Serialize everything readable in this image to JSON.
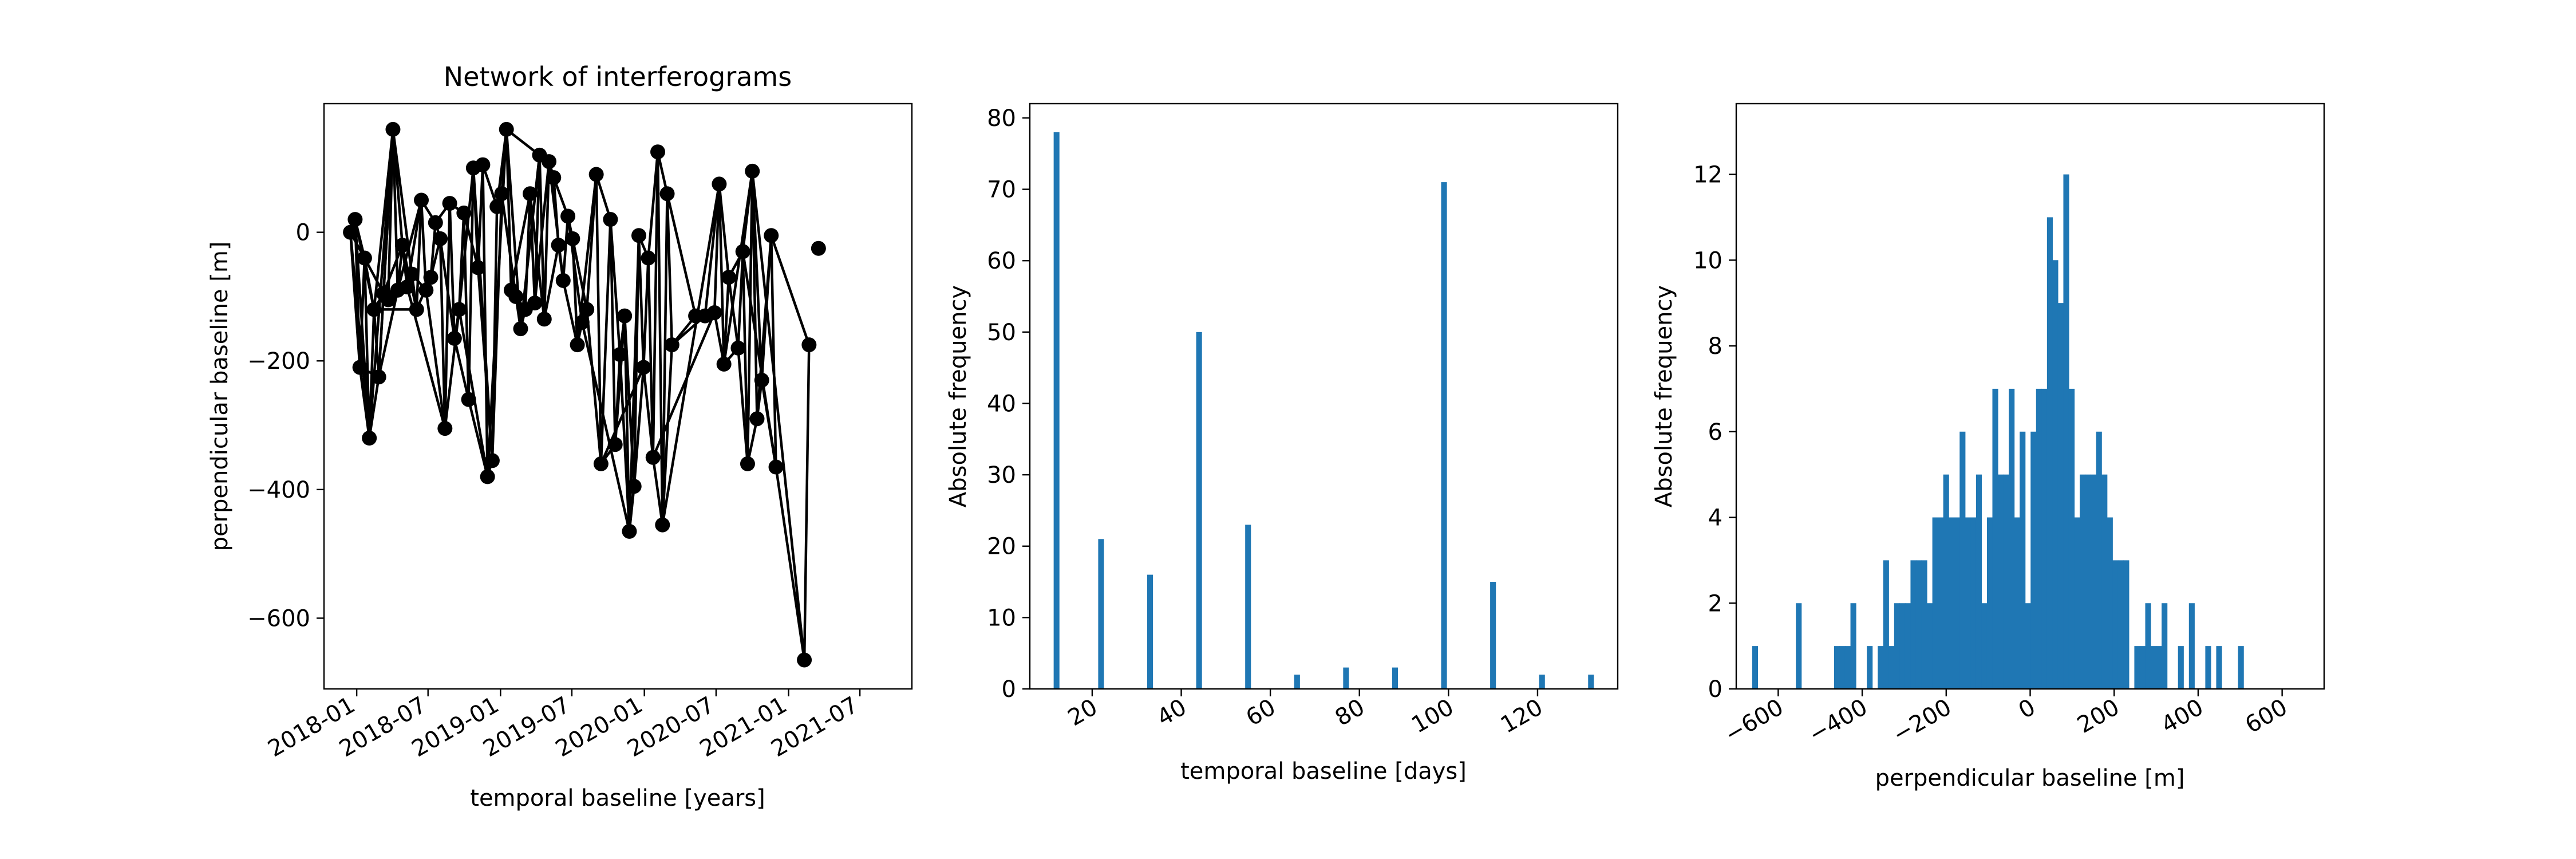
{
  "chart_data": [
    {
      "type": "line",
      "title": "Network of interferograms",
      "xlabel": "temporal baseline [years]",
      "ylabel": "perpendicular baseline [m]",
      "xlim": [
        "2017-10-10",
        "2021-11-10"
      ],
      "ylim": [
        -710,
        200
      ],
      "x_ticks": [
        "2018-01",
        "2018-07",
        "2019-01",
        "2019-07",
        "2020-01",
        "2020-07",
        "2021-01",
        "2021-07"
      ],
      "y_ticks": [
        0,
        -200,
        -400,
        -600
      ],
      "marker_color": "#000000",
      "acquisitions": [
        {
          "date": "2017-12-16",
          "bperp": 0
        },
        {
          "date": "2017-12-28",
          "bperp": 20
        },
        {
          "date": "2018-01-09",
          "bperp": -210
        },
        {
          "date": "2018-01-21",
          "bperp": -40
        },
        {
          "date": "2018-02-02",
          "bperp": -320
        },
        {
          "date": "2018-02-14",
          "bperp": -120
        },
        {
          "date": "2018-02-26",
          "bperp": -225
        },
        {
          "date": "2018-03-10",
          "bperp": -95
        },
        {
          "date": "2018-03-22",
          "bperp": -105
        },
        {
          "date": "2018-04-03",
          "bperp": 160
        },
        {
          "date": "2018-04-15",
          "bperp": -90
        },
        {
          "date": "2018-04-27",
          "bperp": -20
        },
        {
          "date": "2018-05-09",
          "bperp": -85
        },
        {
          "date": "2018-05-21",
          "bperp": -65
        },
        {
          "date": "2018-06-02",
          "bperp": -120
        },
        {
          "date": "2018-06-14",
          "bperp": 50
        },
        {
          "date": "2018-06-26",
          "bperp": -90
        },
        {
          "date": "2018-07-08",
          "bperp": -70
        },
        {
          "date": "2018-07-20",
          "bperp": 15
        },
        {
          "date": "2018-08-01",
          "bperp": -10
        },
        {
          "date": "2018-08-13",
          "bperp": -305
        },
        {
          "date": "2018-08-25",
          "bperp": 45
        },
        {
          "date": "2018-09-06",
          "bperp": -165
        },
        {
          "date": "2018-09-18",
          "bperp": -120
        },
        {
          "date": "2018-09-30",
          "bperp": 30
        },
        {
          "date": "2018-10-12",
          "bperp": -260
        },
        {
          "date": "2018-10-24",
          "bperp": 100
        },
        {
          "date": "2018-11-05",
          "bperp": -55
        },
        {
          "date": "2018-11-17",
          "bperp": 105
        },
        {
          "date": "2018-11-29",
          "bperp": -380
        },
        {
          "date": "2018-12-11",
          "bperp": -355
        },
        {
          "date": "2018-12-23",
          "bperp": 40
        },
        {
          "date": "2019-01-04",
          "bperp": 60
        },
        {
          "date": "2019-01-16",
          "bperp": 160
        },
        {
          "date": "2019-01-28",
          "bperp": -90
        },
        {
          "date": "2019-02-09",
          "bperp": -100
        },
        {
          "date": "2019-02-21",
          "bperp": -150
        },
        {
          "date": "2019-03-05",
          "bperp": -120
        },
        {
          "date": "2019-03-17",
          "bperp": 60
        },
        {
          "date": "2019-03-29",
          "bperp": -110
        },
        {
          "date": "2019-04-10",
          "bperp": 120
        },
        {
          "date": "2019-04-22",
          "bperp": -135
        },
        {
          "date": "2019-05-04",
          "bperp": 110
        },
        {
          "date": "2019-05-16",
          "bperp": 85
        },
        {
          "date": "2019-05-28",
          "bperp": -20
        },
        {
          "date": "2019-06-09",
          "bperp": -75
        },
        {
          "date": "2019-06-21",
          "bperp": 25
        },
        {
          "date": "2019-07-03",
          "bperp": -10
        },
        {
          "date": "2019-07-15",
          "bperp": -175
        },
        {
          "date": "2019-07-27",
          "bperp": -140
        },
        {
          "date": "2019-08-08",
          "bperp": -120
        },
        {
          "date": "2019-09-01",
          "bperp": 90
        },
        {
          "date": "2019-09-13",
          "bperp": -360
        },
        {
          "date": "2019-10-07",
          "bperp": 20
        },
        {
          "date": "2019-10-19",
          "bperp": -330
        },
        {
          "date": "2019-10-31",
          "bperp": -190
        },
        {
          "date": "2019-11-12",
          "bperp": -130
        },
        {
          "date": "2019-11-24",
          "bperp": -465
        },
        {
          "date": "2019-12-06",
          "bperp": -395
        },
        {
          "date": "2019-12-18",
          "bperp": -5
        },
        {
          "date": "2019-12-30",
          "bperp": -210
        },
        {
          "date": "2020-01-11",
          "bperp": -40
        },
        {
          "date": "2020-01-23",
          "bperp": -350
        },
        {
          "date": "2020-02-04",
          "bperp": 125
        },
        {
          "date": "2020-02-16",
          "bperp": -455
        },
        {
          "date": "2020-02-28",
          "bperp": 60
        },
        {
          "date": "2020-03-11",
          "bperp": -175
        },
        {
          "date": "2020-05-10",
          "bperp": -130
        },
        {
          "date": "2020-06-03",
          "bperp": -130
        },
        {
          "date": "2020-06-27",
          "bperp": -125
        },
        {
          "date": "2020-07-09",
          "bperp": 75
        },
        {
          "date": "2020-07-21",
          "bperp": -205
        },
        {
          "date": "2020-08-02",
          "bperp": -70
        },
        {
          "date": "2020-08-26",
          "bperp": -180
        },
        {
          "date": "2020-09-07",
          "bperp": -30
        },
        {
          "date": "2020-09-19",
          "bperp": -360
        },
        {
          "date": "2020-10-01",
          "bperp": 95
        },
        {
          "date": "2020-10-13",
          "bperp": -290
        },
        {
          "date": "2020-10-25",
          "bperp": -230
        },
        {
          "date": "2020-11-18",
          "bperp": -5
        },
        {
          "date": "2020-11-30",
          "bperp": -365
        },
        {
          "date": "2021-02-10",
          "bperp": -665
        },
        {
          "date": "2021-02-22",
          "bperp": -175
        },
        {
          "date": "2021-03-18",
          "bperp": -25
        }
      ],
      "interferograms": [
        [
          0,
          1
        ],
        [
          0,
          2
        ],
        [
          0,
          3
        ],
        [
          0,
          4
        ],
        [
          1,
          2
        ],
        [
          1,
          3
        ],
        [
          1,
          4
        ],
        [
          1,
          5
        ],
        [
          2,
          3
        ],
        [
          2,
          4
        ],
        [
          2,
          6
        ],
        [
          3,
          4
        ],
        [
          3,
          5
        ],
        [
          3,
          7
        ],
        [
          4,
          5
        ],
        [
          4,
          6
        ],
        [
          4,
          9
        ],
        [
          5,
          6
        ],
        [
          5,
          7
        ],
        [
          5,
          9
        ],
        [
          6,
          7
        ],
        [
          6,
          9
        ],
        [
          6,
          10
        ],
        [
          7,
          8
        ],
        [
          7,
          9
        ],
        [
          7,
          11
        ],
        [
          8,
          9
        ],
        [
          8,
          10
        ],
        [
          8,
          12
        ],
        [
          9,
          10
        ],
        [
          9,
          11
        ],
        [
          9,
          13
        ],
        [
          10,
          11
        ],
        [
          10,
          13
        ],
        [
          10,
          15
        ],
        [
          11,
          12
        ],
        [
          11,
          14
        ],
        [
          12,
          13
        ],
        [
          12,
          15
        ],
        [
          13,
          14
        ],
        [
          13,
          16
        ],
        [
          14,
          15
        ],
        [
          14,
          17
        ],
        [
          15,
          16
        ],
        [
          15,
          18
        ],
        [
          16,
          17
        ],
        [
          16,
          20
        ],
        [
          17,
          18
        ],
        [
          17,
          19
        ],
        [
          18,
          19
        ],
        [
          18,
          21
        ],
        [
          19,
          20
        ],
        [
          19,
          22
        ],
        [
          20,
          21
        ],
        [
          20,
          23
        ],
        [
          21,
          22
        ],
        [
          21,
          24
        ],
        [
          22,
          23
        ],
        [
          22,
          25
        ],
        [
          23,
          24
        ],
        [
          23,
          26
        ],
        [
          24,
          25
        ],
        [
          24,
          27
        ],
        [
          25,
          26
        ],
        [
          25,
          29
        ],
        [
          26,
          27
        ],
        [
          26,
          28
        ],
        [
          27,
          28
        ],
        [
          27,
          30
        ],
        [
          28,
          29
        ],
        [
          28,
          31
        ],
        [
          29,
          30
        ],
        [
          29,
          33
        ],
        [
          30,
          31
        ],
        [
          30,
          32
        ],
        [
          31,
          32
        ],
        [
          31,
          33
        ],
        [
          32,
          33
        ],
        [
          32,
          35
        ],
        [
          33,
          34
        ],
        [
          33,
          36
        ],
        [
          34,
          35
        ],
        [
          34,
          38
        ],
        [
          35,
          36
        ],
        [
          35,
          37
        ],
        [
          36,
          37
        ],
        [
          36,
          40
        ],
        [
          37,
          38
        ],
        [
          37,
          39
        ],
        [
          38,
          39
        ],
        [
          38,
          41
        ],
        [
          39,
          40
        ],
        [
          39,
          42
        ],
        [
          40,
          41
        ],
        [
          40,
          43
        ],
        [
          41,
          42
        ],
        [
          41,
          44
        ],
        [
          42,
          43
        ],
        [
          42,
          45
        ],
        [
          43,
          44
        ],
        [
          43,
          46
        ],
        [
          44,
          45
        ],
        [
          44,
          47
        ],
        [
          45,
          46
        ],
        [
          45,
          48
        ],
        [
          46,
          47
        ],
        [
          46,
          49
        ],
        [
          47,
          48
        ],
        [
          47,
          50
        ],
        [
          48,
          49
        ],
        [
          48,
          51
        ],
        [
          49,
          50
        ],
        [
          50,
          51
        ],
        [
          50,
          52
        ],
        [
          51,
          52
        ],
        [
          51,
          53
        ],
        [
          52,
          53
        ],
        [
          52,
          54
        ],
        [
          53,
          54
        ],
        [
          53,
          55
        ],
        [
          54,
          55
        ],
        [
          54,
          56
        ],
        [
          55,
          56
        ],
        [
          55,
          57
        ],
        [
          56,
          57
        ],
        [
          56,
          58
        ],
        [
          57,
          58
        ],
        [
          57,
          59
        ],
        [
          58,
          59
        ],
        [
          58,
          60
        ],
        [
          59,
          60
        ],
        [
          59,
          61
        ],
        [
          60,
          61
        ],
        [
          60,
          62
        ],
        [
          61,
          62
        ],
        [
          61,
          63
        ],
        [
          62,
          63
        ],
        [
          62,
          64
        ],
        [
          63,
          64
        ],
        [
          63,
          65
        ],
        [
          64,
          65
        ],
        [
          64,
          66
        ],
        [
          65,
          66
        ],
        [
          65,
          67
        ],
        [
          66,
          67
        ],
        [
          66,
          68
        ],
        [
          67,
          68
        ],
        [
          67,
          69
        ],
        [
          68,
          69
        ],
        [
          68,
          70
        ],
        [
          69,
          70
        ],
        [
          69,
          71
        ],
        [
          70,
          71
        ],
        [
          70,
          72
        ],
        [
          71,
          72
        ],
        [
          71,
          73
        ],
        [
          72,
          73
        ],
        [
          72,
          74
        ],
        [
          73,
          74
        ],
        [
          73,
          75
        ],
        [
          74,
          75
        ],
        [
          74,
          76
        ],
        [
          75,
          76
        ],
        [
          75,
          77
        ],
        [
          76,
          77
        ],
        [
          76,
          78
        ],
        [
          77,
          78
        ],
        [
          77,
          79
        ],
        [
          78,
          79
        ],
        [
          78,
          80
        ],
        [
          79,
          80
        ],
        [
          80,
          81
        ],
        [
          81,
          82
        ],
        [
          49,
          57
        ],
        [
          52,
          60
        ],
        [
          62,
          69
        ],
        [
          64,
          70
        ],
        [
          71,
          76
        ],
        [
          74,
          80
        ],
        [
          12,
          20
        ],
        [
          26,
          30
        ],
        [
          33,
          40
        ],
        [
          76,
          81
        ],
        [
          79,
          82
        ],
        [
          5,
          14
        ],
        [
          23,
          29
        ]
      ]
    },
    {
      "type": "bar",
      "title": "",
      "xlabel": "temporal baseline [days]",
      "ylabel": "Absolute frequency",
      "xlim": [
        6.0,
        138.0
      ],
      "ylim": [
        0,
        82
      ],
      "x_ticks": [
        20,
        40,
        60,
        80,
        100,
        120
      ],
      "y_ticks": [
        0,
        10,
        20,
        30,
        40,
        50,
        60,
        70,
        80
      ],
      "bar_color": "#1f77b4",
      "bars": [
        {
          "x": 12,
          "value": 78
        },
        {
          "x": 22,
          "value": 21
        },
        {
          "x": 33,
          "value": 16
        },
        {
          "x": 44,
          "value": 50
        },
        {
          "x": 55,
          "value": 23
        },
        {
          "x": 66,
          "value": 2
        },
        {
          "x": 77,
          "value": 3
        },
        {
          "x": 88,
          "value": 3
        },
        {
          "x": 99,
          "value": 71
        },
        {
          "x": 110,
          "value": 15
        },
        {
          "x": 121,
          "value": 2
        },
        {
          "x": 132,
          "value": 2
        }
      ],
      "bar_width": 1.3
    },
    {
      "type": "bar",
      "title": "",
      "xlabel": "perpendicular baseline [m]",
      "ylabel": "Absolute frequency",
      "xlim": [
        -700,
        700
      ],
      "ylim": [
        0,
        13.65
      ],
      "x_ticks": [
        -600,
        -400,
        -200,
        0,
        200,
        400,
        600
      ],
      "x_tick_labels": [
        "−600",
        "−400",
        "−200",
        "0",
        "200",
        "400",
        "600"
      ],
      "y_ticks": [
        0,
        2,
        4,
        6,
        8,
        10,
        12
      ],
      "bar_color": "#1f77b4",
      "bin_start": -662,
      "bin_width": 13,
      "counts": [
        1,
        0,
        0,
        0,
        0,
        0,
        0,
        0,
        2,
        0,
        0,
        0,
        0,
        0,
        0,
        1,
        1,
        1,
        2,
        0,
        0,
        1,
        0,
        1,
        3,
        1,
        2,
        2,
        2,
        3,
        3,
        3,
        2,
        4,
        4,
        5,
        4,
        4,
        6,
        4,
        4,
        5,
        2,
        4,
        7,
        5,
        5,
        7,
        4,
        6,
        2,
        6,
        7,
        7,
        11,
        10,
        9,
        12,
        7,
        4,
        5,
        5,
        5,
        6,
        5,
        4,
        3,
        3,
        3,
        0,
        1,
        1,
        2,
        1,
        1,
        2,
        0,
        0,
        1,
        0,
        2,
        0,
        0,
        1,
        0,
        1,
        0,
        0,
        0,
        1
      ]
    }
  ]
}
